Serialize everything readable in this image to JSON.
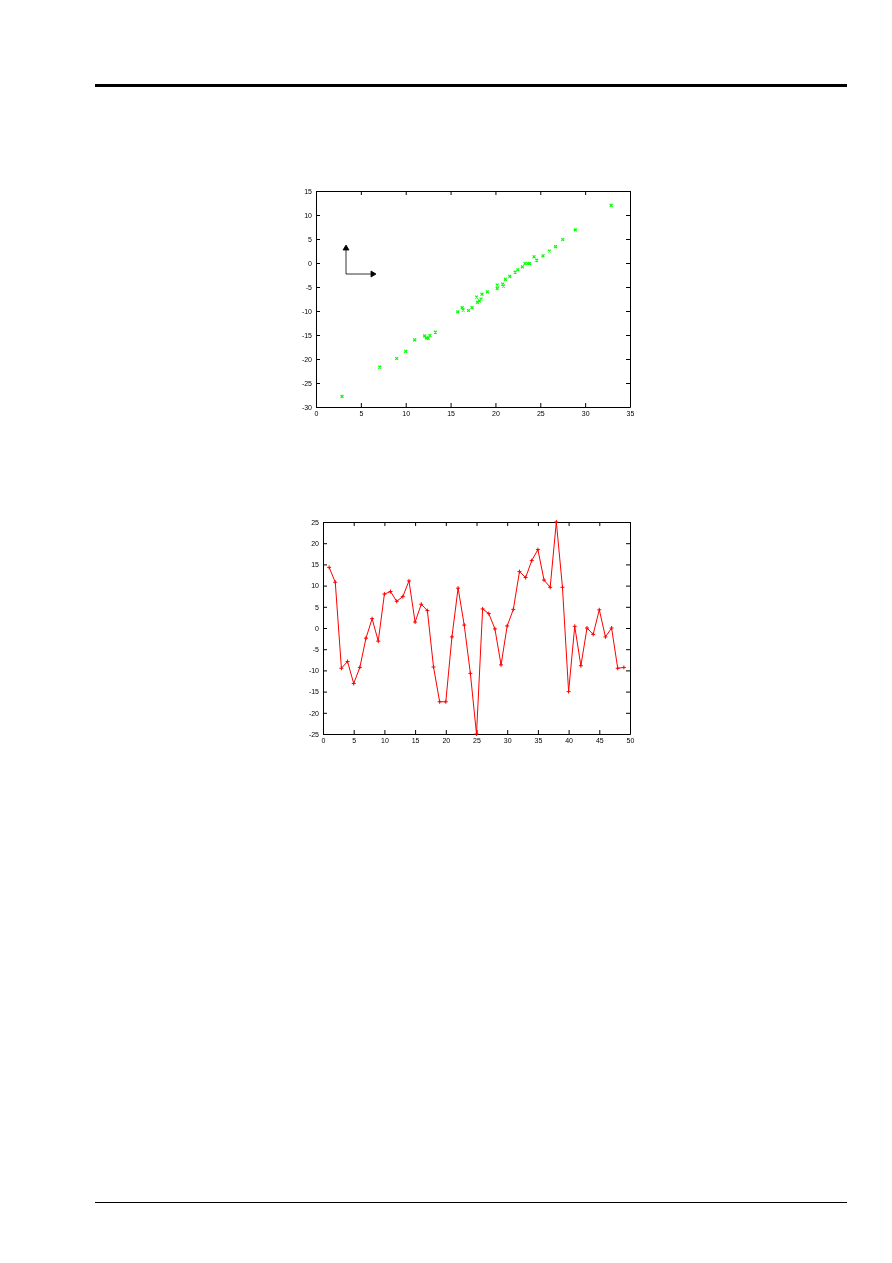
{
  "chart_data": [
    {
      "type": "scatter",
      "xlim": [
        0,
        35
      ],
      "ylim": [
        -30,
        15
      ],
      "xticks": [
        0,
        5,
        10,
        15,
        20,
        25,
        30,
        35
      ],
      "yticks": [
        -30,
        -25,
        -20,
        -15,
        -10,
        -5,
        0,
        5,
        10,
        15
      ],
      "grid": false,
      "marker": "cross",
      "series": [
        {
          "color": "#00ff00",
          "x": [
            2.9,
            7.1,
            9.0,
            10.0,
            11.0,
            12.1,
            12.3,
            12.5,
            12.7,
            13.3,
            15.8,
            16.3,
            16.4,
            17.0,
            17.4,
            17.9,
            18.0,
            18.2,
            18.4,
            18.5,
            19.1,
            20.2,
            20.2,
            20.8,
            20.9,
            21.1,
            21.6,
            22.2,
            22.5,
            23.0,
            23.3,
            23.6,
            23.8,
            24.3,
            24.6,
            25.3,
            26.0,
            26.7,
            27.5,
            28.9,
            32.9
          ],
          "values": [
            -27.8,
            -21.7,
            -19.9,
            -18.4,
            -16.0,
            -15.2,
            -15.6,
            -15.7,
            -15.1,
            -14.4,
            -10.2,
            -9.3,
            -9.8,
            -9.9,
            -9.3,
            -7.1,
            -8.2,
            -7.9,
            -7.5,
            -6.5,
            -6.0,
            -5.3,
            -4.6,
            -4.4,
            -4.8,
            -3.4,
            -2.8,
            -1.9,
            -1.4,
            -0.8,
            -0.1,
            -0.1,
            -0.1,
            1.3,
            0.6,
            1.5,
            2.5,
            3.4,
            4.9,
            6.9,
            12.0
          ]
        }
      ]
    },
    {
      "type": "line",
      "xlim": [
        0,
        50
      ],
      "ylim": [
        -25,
        25
      ],
      "xticks": [
        0,
        5,
        10,
        15,
        20,
        25,
        30,
        35,
        40,
        45,
        50
      ],
      "yticks": [
        -25,
        -20,
        -15,
        -10,
        -5,
        0,
        5,
        10,
        15,
        20,
        25
      ],
      "grid": false,
      "marker": "cross",
      "line_style": "solid",
      "series": [
        {
          "color": "#ff0000",
          "x": [
            1,
            2,
            3,
            4,
            5,
            6,
            7,
            8,
            9,
            10,
            11,
            12,
            13,
            14,
            15,
            16,
            17,
            18,
            19,
            20,
            21,
            22,
            23,
            24,
            25,
            26,
            27,
            28,
            29,
            30,
            31,
            32,
            33,
            34,
            35,
            36,
            37,
            38,
            39,
            40,
            41,
            42,
            43,
            44,
            45,
            46,
            47,
            48,
            49
          ],
          "values": [
            14.3,
            10.8,
            -9.5,
            -7.9,
            -13.1,
            -9.3,
            -2.4,
            2.2,
            -3.1,
            8.0,
            8.6,
            6.3,
            7.4,
            11.1,
            1.4,
            5.6,
            4.1,
            -9.2,
            -17.4,
            -17.4,
            -2.1,
            9.4,
            0.7,
            -10.7,
            -25,
            4.5,
            3.4,
            -0.2,
            -8.7,
            0.5,
            4.4,
            13.3,
            11.9,
            15.9,
            18.5,
            11.3,
            9.6,
            25,
            9.6,
            -15.0,
            0.4,
            -8.9,
            0.0,
            -1.5,
            4.3,
            -2.1,
            0.0,
            -9.5,
            -9.3
          ]
        }
      ]
    }
  ]
}
